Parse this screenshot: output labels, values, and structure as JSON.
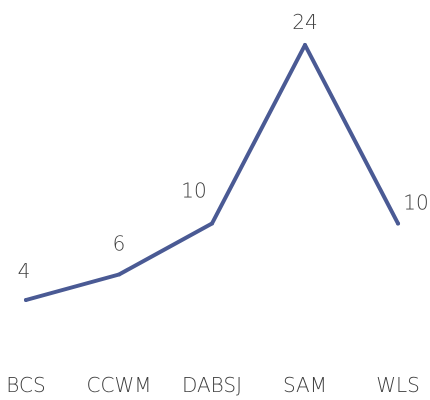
{
  "chart_data": {
    "type": "line",
    "categories": [
      "BCS",
      "CCWM",
      "DABSJ",
      "SAM",
      "WLS"
    ],
    "values": [
      4,
      6,
      10,
      24,
      10
    ],
    "data_labels": [
      "4",
      "6",
      "10",
      "24",
      "10"
    ],
    "title": "",
    "xlabel": "",
    "ylabel": "",
    "ylim": [
      0,
      24
    ],
    "grid": false,
    "legend": "none",
    "line_color": "#4a5a94"
  }
}
